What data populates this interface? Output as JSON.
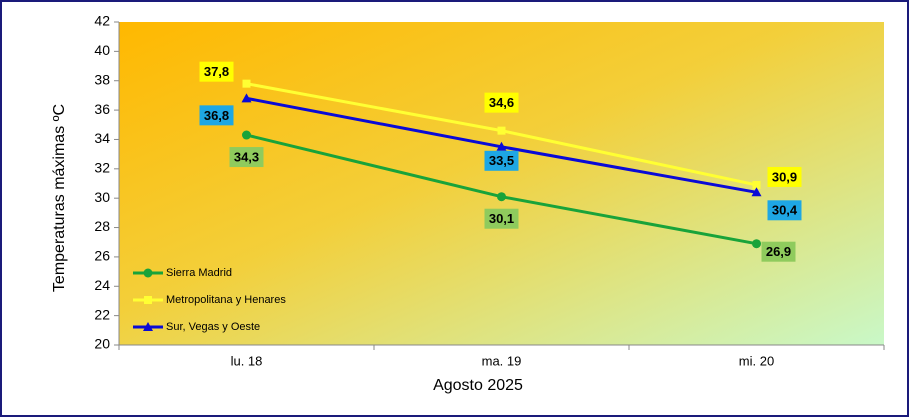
{
  "chart_data": {
    "type": "line",
    "y_axis_label": "Temperaturas máximas ºC",
    "x_axis_label": "Agosto 2025",
    "categories": [
      "lu. 18",
      "ma. 19",
      "mi. 20"
    ],
    "ylim": [
      20,
      42
    ],
    "yticks": [
      20,
      22,
      24,
      26,
      28,
      30,
      32,
      34,
      36,
      38,
      40,
      42
    ],
    "legend": "lower left",
    "series": [
      {
        "name": "Sierra Madrid",
        "color": "#19a33a",
        "marker": "circle",
        "label_color": "#8fcb5d",
        "values": [
          34.3,
          30.1,
          26.9
        ],
        "value_labels": [
          "34,3",
          "30,1",
          "26,9"
        ]
      },
      {
        "name": "Metropolitana y Henares",
        "color": "#ffff33",
        "marker": "square",
        "label_color": "#ffff00",
        "values": [
          37.8,
          34.6,
          30.9
        ],
        "value_labels": [
          "37,8",
          "34,6",
          "30,9"
        ]
      },
      {
        "name": "Sur, Vegas y Oeste",
        "color": "#0a0ad6",
        "marker": "triangle",
        "label_color": "#1ea7e4",
        "values": [
          36.8,
          33.5,
          30.4
        ],
        "value_labels": [
          "36,8",
          "33,5",
          "30,4"
        ]
      }
    ]
  }
}
